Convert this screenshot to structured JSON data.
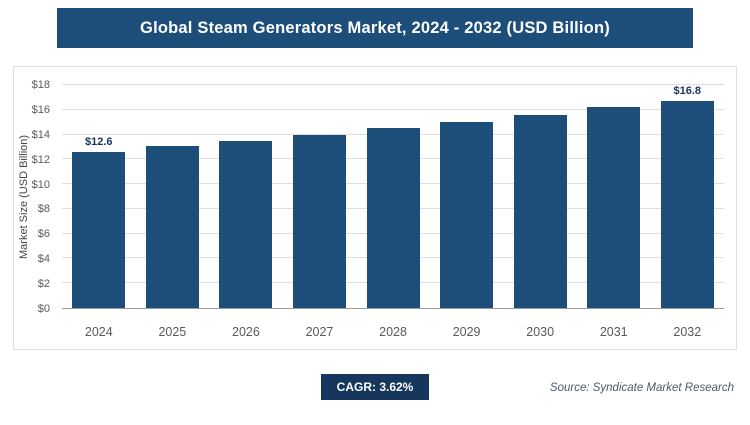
{
  "header": {
    "title": "Global Steam Generators Market, 2024 - 2032 (USD Billion)"
  },
  "footer": {
    "cagr_badge": "CAGR: 3.62%",
    "source": "Source: Syndicate Market Research"
  },
  "colors": {
    "navy": "#1c4e79",
    "badge_navy": "#17365d",
    "grid": "#dedede",
    "axis_line": "#9a9a9a",
    "axis_text": "#595959",
    "value_label": "#17365d"
  },
  "chart_data": {
    "type": "bar",
    "title": "Global Steam Generators Market, 2024 - 2032 (USD Billion)",
    "categories": [
      "2024",
      "2025",
      "2026",
      "2027",
      "2028",
      "2029",
      "2030",
      "2031",
      "2032"
    ],
    "values": [
      12.6,
      13.1,
      13.5,
      14.0,
      14.5,
      15.0,
      15.6,
      16.2,
      16.8
    ],
    "bar_labels": [
      "$12.6",
      "",
      "",
      "",
      "",
      "",
      "",
      "",
      "$16.8"
    ],
    "xlabel": "",
    "ylabel": "Market Size (USD Billion)",
    "ylim": [
      0,
      18
    ],
    "ytick_step": 2,
    "ytick_prefix": "$",
    "grid": true,
    "legend": false,
    "cagr": "3.62%",
    "bar_color": "#1c4e79"
  }
}
